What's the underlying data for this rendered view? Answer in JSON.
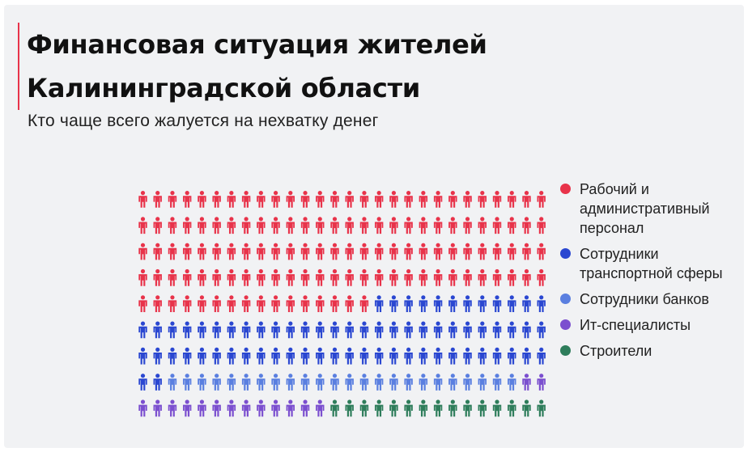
{
  "title": "Финансовая ситуация жителей Калининградской области",
  "subtitle": "Кто чаще всего жалуется на нехватку денег",
  "chart_data": {
    "type": "waffle",
    "grid": {
      "rows": 9,
      "columns": 28
    },
    "series": [
      {
        "name": "Рабочий и административный персонал",
        "icons": 128,
        "color": "#e8334a"
      },
      {
        "name": "Сотрудники транспортной сферы",
        "icons": 70,
        "color": "#2a47d1"
      },
      {
        "name": "Сотрудники банков",
        "icons": 24,
        "color": "#5a7fe0"
      },
      {
        "name": "Ит-специалисты",
        "icons": 15,
        "color": "#7b4fcf"
      },
      {
        "name": "Строители",
        "icons": 15,
        "color": "#2e7d5b"
      }
    ]
  }
}
